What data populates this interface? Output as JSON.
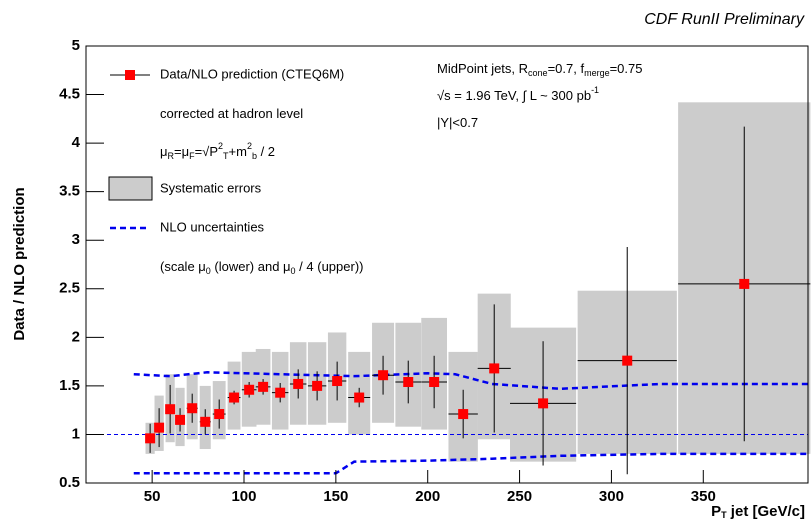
{
  "chart_data": {
    "type": "errorbar",
    "title": "CDF RunII Preliminary",
    "y_label": "Data / NLO prediction",
    "x_label": [
      {
        "text": "P"
      },
      {
        "text": "T",
        "shift": "sub"
      },
      {
        "text": " jet [GeV/c]"
      }
    ],
    "xlim": [
      14,
      407
    ],
    "xticks": [
      50,
      100,
      150,
      200,
      250,
      300,
      350
    ],
    "ylim": [
      0.5,
      5
    ],
    "yticks": [
      0.5,
      1,
      1.5,
      2,
      2.5,
      3,
      3.5,
      4,
      4.5,
      5
    ],
    "reference_value": 1,
    "series": [
      {
        "name": "Data/NLO prediction (CTEQ6M)",
        "color": "#ff0000",
        "x": [
          48.9,
          53.8,
          59.8,
          65.2,
          71.8,
          78.9,
          86.5,
          94.6,
          102.8,
          110.4,
          119.7,
          129.5,
          139.8,
          150.7,
          162.7,
          175.7,
          189.4,
          203.5,
          219.3,
          236.2,
          262.8,
          308.6,
          372.3
        ],
        "xerr": [
          2.5,
          2.5,
          2.5,
          2.5,
          3,
          3,
          3.5,
          3.5,
          4,
          4,
          4.5,
          4.5,
          5,
          5,
          6,
          6,
          7,
          7,
          8,
          9,
          18,
          27,
          36
        ],
        "values": [
          0.96,
          1.07,
          1.26,
          1.15,
          1.27,
          1.13,
          1.21,
          1.38,
          1.46,
          1.49,
          1.43,
          1.52,
          1.5,
          1.55,
          1.38,
          1.61,
          1.54,
          1.54,
          1.21,
          1.68,
          1.32,
          1.76,
          2.55
        ],
        "yerr": [
          0.15,
          0.2,
          0.25,
          0.12,
          0.15,
          0.13,
          0.15,
          0.07,
          0.08,
          0.08,
          0.1,
          0.15,
          0.15,
          0.2,
          0.1,
          0.2,
          0.22,
          0.27,
          0.25,
          0.66,
          0.64,
          1.17,
          1.62
        ]
      },
      {
        "name": "Systematic errors",
        "color": "#cccccc",
        "lower": [
          0.8,
          0.83,
          0.92,
          0.88,
          0.95,
          0.85,
          0.95,
          1.05,
          1.08,
          1.1,
          1.05,
          1.1,
          1.1,
          1.12,
          1.0,
          1.12,
          1.08,
          1.05,
          0.72,
          0.95,
          0.72,
          0.8,
          0.8
        ],
        "upper": [
          1.12,
          1.4,
          1.62,
          1.48,
          1.62,
          1.5,
          1.55,
          1.75,
          1.85,
          1.88,
          1.85,
          1.95,
          1.95,
          2.05,
          1.85,
          2.15,
          2.15,
          2.2,
          1.85,
          2.45,
          2.1,
          2.48,
          4.42
        ]
      },
      {
        "name": "NLO uncertainties",
        "color": "#0000ee",
        "upper_x": [
          40,
          60,
          80,
          120,
          160,
          200,
          215,
          235,
          272,
          327,
          407
        ],
        "upper_values": [
          1.62,
          1.6,
          1.64,
          1.62,
          1.6,
          1.63,
          1.62,
          1.52,
          1.47,
          1.52,
          1.52
        ],
        "lower_x": [
          40,
          60,
          80,
          150,
          160,
          200,
          235,
          272,
          327,
          407
        ],
        "lower_values": [
          0.6,
          0.6,
          0.6,
          0.6,
          0.72,
          0.73,
          0.75,
          0.78,
          0.8,
          0.8
        ]
      }
    ],
    "legend_notes": [
      [
        {
          "text": "corrected at hadron level"
        }
      ],
      [
        {
          "text": "μ"
        },
        {
          "text": "R",
          "shift": "sub"
        },
        {
          "text": "=μ"
        },
        {
          "text": "F",
          "shift": "sub"
        },
        {
          "text": "=√P"
        },
        {
          "text": "2",
          "shift": "sup"
        },
        {
          "text": "T",
          "shift": "sub"
        },
        {
          "text": "+m"
        },
        {
          "text": "2",
          "shift": "sup"
        },
        {
          "text": "b",
          "shift": "sub"
        },
        {
          "text": " / 2"
        }
      ],
      [
        {
          "text": "(scale μ"
        },
        {
          "text": "0",
          "shift": "sub"
        },
        {
          "text": " (lower) and μ"
        },
        {
          "text": "0",
          "shift": "sub"
        },
        {
          "text": " / 4 (upper))"
        }
      ]
    ],
    "annotations": [
      [
        {
          "text": "MidPoint jets, R"
        },
        {
          "text": "cone",
          "shift": "sub"
        },
        {
          "text": "=0.7, f"
        },
        {
          "text": "merge",
          "shift": "sub"
        },
        {
          "text": "=0.75"
        }
      ],
      [
        {
          "text": "√s = 1.96 TeV, ∫ L ~ 300 pb"
        },
        {
          "text": "-1",
          "shift": "sup"
        }
      ],
      [
        {
          "text": "|Y|<0.7"
        }
      ]
    ]
  }
}
